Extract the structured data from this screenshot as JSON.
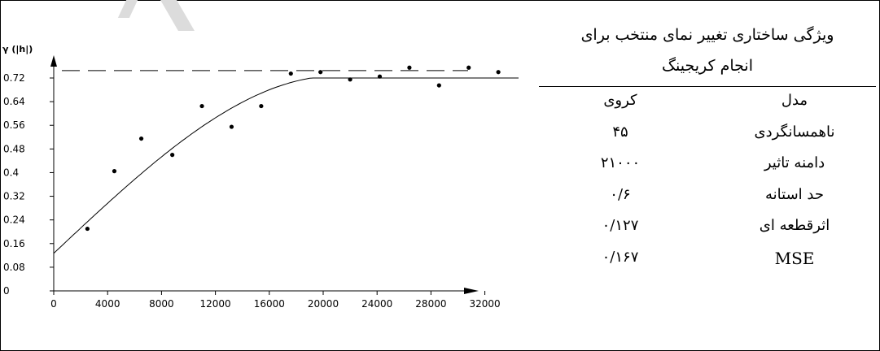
{
  "chart_data": {
    "type": "scatter",
    "ylabel": "γ (|h|)",
    "xlabel": "",
    "xlim": [
      0,
      34500
    ],
    "ylim": [
      0,
      0.76
    ],
    "x_ticks": [
      0,
      4000,
      8000,
      12000,
      16000,
      20000,
      24000,
      28000,
      32000
    ],
    "y_ticks": [
      0,
      0.08,
      0.16,
      0.24,
      0.32,
      0.4,
      0.48,
      0.56,
      0.64,
      0.72
    ],
    "x_tick_labels": [
      "0",
      "4000",
      "8000",
      "12000",
      "16000",
      "20000",
      "24000",
      "28000",
      "32000"
    ],
    "y_tick_labels": [
      "0",
      "0.08",
      "0.16",
      "0.24",
      "0.32",
      "0.4",
      "0.48",
      "0.56",
      "0.64",
      "0.72"
    ],
    "sill_line": 0.745,
    "model": {
      "type": "spherical",
      "nugget": 0.127,
      "sill": 0.6,
      "range": 21000
    },
    "points": [
      {
        "x": 2500,
        "y": 0.21
      },
      {
        "x": 4500,
        "y": 0.405
      },
      {
        "x": 6500,
        "y": 0.515
      },
      {
        "x": 8800,
        "y": 0.46
      },
      {
        "x": 11000,
        "y": 0.625
      },
      {
        "x": 13200,
        "y": 0.555
      },
      {
        "x": 15400,
        "y": 0.625
      },
      {
        "x": 17600,
        "y": 0.735
      },
      {
        "x": 19800,
        "y": 0.74
      },
      {
        "x": 22000,
        "y": 0.715
      },
      {
        "x": 24200,
        "y": 0.725
      },
      {
        "x": 26400,
        "y": 0.755
      },
      {
        "x": 28600,
        "y": 0.695
      },
      {
        "x": 30800,
        "y": 0.755
      },
      {
        "x": 33000,
        "y": 0.74
      }
    ],
    "grid": false
  },
  "table": {
    "title_line1": "ویژگی ساختاری تغییر نمای منتخب برای",
    "title_line2": "انجام کریجینگ",
    "rows": [
      {
        "name": "مدل",
        "value": "کروی"
      },
      {
        "name": "ناهمسانگردی",
        "value": "۴۵"
      },
      {
        "name": "دامنه تاثیر",
        "value": "۲۱۰۰۰"
      },
      {
        "name": "حد استانه",
        "value": "۰/۶"
      },
      {
        "name": "اثرقطعه ای",
        "value": "۰/۱۲۷"
      },
      {
        "name": "MSE",
        "value": "۰/۱۶۷"
      }
    ]
  }
}
